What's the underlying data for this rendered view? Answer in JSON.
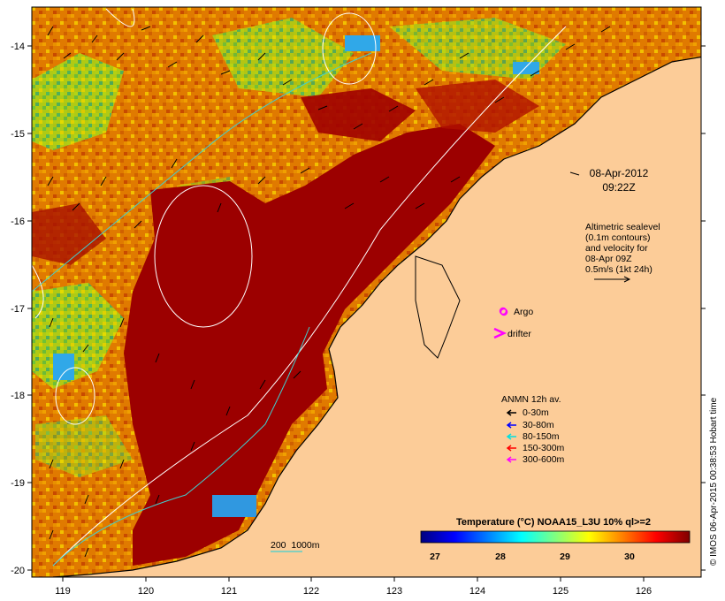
{
  "map": {
    "lon_ticks": [
      "119",
      "120",
      "121",
      "122",
      "123",
      "124",
      "125",
      "126"
    ],
    "lat_ticks": [
      "-14",
      "-15",
      "-16",
      "-17",
      "-18",
      "-19",
      "-20"
    ],
    "lon_range": [
      118.6,
      126.7
    ],
    "lat_range": [
      -20.1,
      -13.6
    ],
    "colors": {
      "land": "#fccc98",
      "arrow": "#000000",
      "contour": "#ffffff"
    }
  },
  "datetime": {
    "date": "08-Apr-2012",
    "time": "09:22Z"
  },
  "altimetry": {
    "line1": "Altimetric sealevel",
    "line2": "(0.1m contours)",
    "line3": "and velocity for",
    "line4": "08-Apr 09Z",
    "line5": "0.5m/s (1kt 24h)"
  },
  "legend_symbols": [
    {
      "label": "Argo",
      "symbol": "circle",
      "color": "#ff00ff"
    },
    {
      "label": "drifter",
      "symbol": "chevron",
      "color": "#ff00ff"
    }
  ],
  "anmn": {
    "title": "ANMN 12h av.",
    "entries": [
      {
        "label": "0-30m",
        "color": "#000000"
      },
      {
        "label": "30-80m",
        "color": "#0000ff"
      },
      {
        "label": "80-150m",
        "color": "#00e0e0"
      },
      {
        "label": "150-300m",
        "color": "#ff0000"
      },
      {
        "label": "300-600m",
        "color": "#ff00ff"
      }
    ]
  },
  "colorbar": {
    "title": "Temperature (°C) NOAA15_L3U 10% ql>=2",
    "ticks": [
      "27",
      "28",
      "29",
      "30"
    ],
    "colors": [
      "#00007f",
      "#0000ff",
      "#0080ff",
      "#00ffff",
      "#80ff80",
      "#ffff00",
      "#ff8000",
      "#ff0000",
      "#7f0000"
    ]
  },
  "depth_legend": "200  1000m",
  "credit": "© IMOS 06-Apr-2015 00:38:53 Hobart time"
}
